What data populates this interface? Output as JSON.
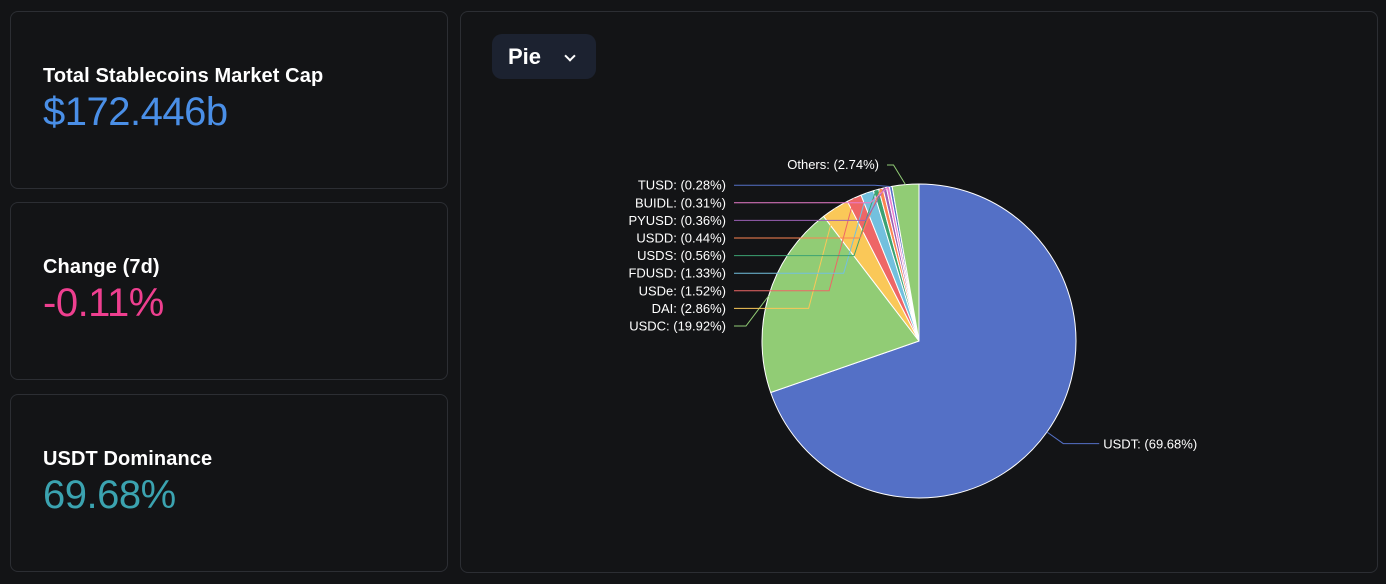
{
  "stats": {
    "market_cap": {
      "label": "Total Stablecoins Market Cap",
      "value": "$172.446b",
      "color": "#4a8fe7"
    },
    "change": {
      "label": "Change (7d)",
      "value": "-0.11%",
      "color": "#ee3f8f"
    },
    "dominance": {
      "label": "USDT Dominance",
      "value": "69.68%",
      "color": "#3ba3b0"
    }
  },
  "chart_controls": {
    "chart_type_label": "Pie"
  },
  "chart_data": {
    "type": "pie",
    "slices": [
      {
        "name": "USDT",
        "value": 69.68,
        "label": "USDT: (69.68%)",
        "color": "#5470c6"
      },
      {
        "name": "USDC",
        "value": 19.92,
        "label": "USDC: (19.92%)",
        "color": "#91cc75"
      },
      {
        "name": "DAI",
        "value": 2.86,
        "label": "DAI: (2.86%)",
        "color": "#fac858"
      },
      {
        "name": "USDe",
        "value": 1.52,
        "label": "USDe: (1.52%)",
        "color": "#ee6666"
      },
      {
        "name": "FDUSD",
        "value": 1.33,
        "label": "FDUSD: (1.33%)",
        "color": "#73c0de"
      },
      {
        "name": "USDS",
        "value": 0.56,
        "label": "USDS: (0.56%)",
        "color": "#3ba272"
      },
      {
        "name": "USDD",
        "value": 0.44,
        "label": "USDD: (0.44%)",
        "color": "#fc8452"
      },
      {
        "name": "PYUSD",
        "value": 0.36,
        "label": "PYUSD: (0.36%)",
        "color": "#9a60b4"
      },
      {
        "name": "BUIDL",
        "value": 0.31,
        "label": "BUIDL: (0.31%)",
        "color": "#ea7ccc"
      },
      {
        "name": "TUSD",
        "value": 0.28,
        "label": "TUSD: (0.28%)",
        "color": "#5470c6"
      },
      {
        "name": "Others",
        "value": 2.74,
        "label": "Others: (2.74%)",
        "color": "#91cc75"
      }
    ]
  }
}
